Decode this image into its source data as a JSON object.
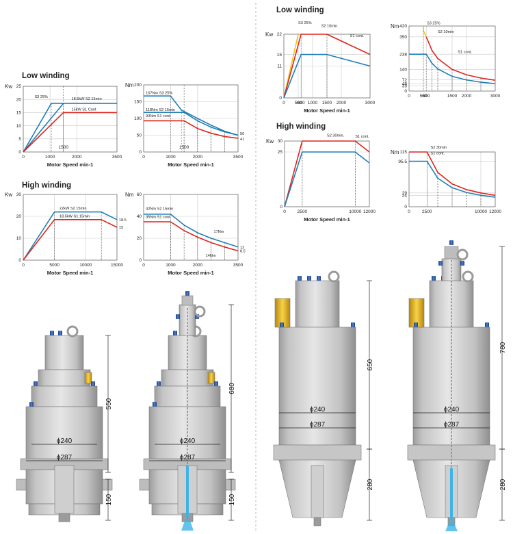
{
  "colors": {
    "red": "#e0241b",
    "blue": "#1f7fb6",
    "yellow": "#f2c21a",
    "grid": "#c9c9c9",
    "body": "#d3d3d3",
    "shade": "#a8a8a8",
    "coolant": "#3db4e6"
  },
  "sections": [
    {
      "id": "left",
      "low_title": "Low winding",
      "high_title": "High winding",
      "machines": [
        {
          "id": "m1",
          "label_total": "550",
          "label_nose": "150",
          "label_d1": "ϕ240",
          "label_d2": "ϕ287"
        },
        {
          "id": "m2",
          "label_total": "680",
          "label_nose": "150",
          "label_d1": "ϕ240",
          "label_d2": "ϕ287"
        }
      ]
    },
    {
      "id": "right",
      "low_title": "Low winding",
      "high_title": "High winding",
      "machines": [
        {
          "id": "m3",
          "label_total": "650",
          "label_nose": "280",
          "label_d1": "ϕ240",
          "label_d2": "ϕ287"
        },
        {
          "id": "m4",
          "label_total": "780",
          "label_nose": "280",
          "label_d1": "ϕ240",
          "label_d2": "ϕ287"
        }
      ]
    }
  ],
  "chart_data": [
    {
      "id": "c1",
      "type": "line",
      "ylabel": "Kw",
      "xlabel": "Motor Speed min-1",
      "xlim": [
        0,
        3500
      ],
      "ylim": [
        0,
        25
      ],
      "xticks": [
        "0",
        "1000",
        "2000",
        "3500"
      ],
      "xtick_vals": [
        0,
        1000,
        2000,
        3500
      ],
      "yticks": [
        "0",
        "5",
        "10",
        "15",
        "20",
        "25"
      ],
      "ytick_vals": [
        0,
        5,
        10,
        15,
        20,
        25
      ],
      "extra_xticks": [
        {
          "v": 1500,
          "t": "1500"
        }
      ],
      "series": [
        {
          "name": "S3 25%",
          "color": "blue",
          "x": [
            0,
            1050,
            1500
          ],
          "y": [
            0,
            18.5,
            18.5
          ]
        },
        {
          "name": "18.5kW S2 15min",
          "color": "blue",
          "x": [
            0,
            1500,
            3500
          ],
          "y": [
            0,
            18.5,
            18.5
          ]
        },
        {
          "name": "15kW S1 Cont",
          "color": "red",
          "x": [
            0,
            1500,
            3500
          ],
          "y": [
            0,
            15,
            15
          ]
        }
      ],
      "annotations": [
        {
          "t": "S3 25%",
          "x": 420,
          "y": 20.6
        },
        {
          "t": "18.5kW S2 15min",
          "x": 1800,
          "y": 19.8
        },
        {
          "t": "15kW S1 Cont",
          "x": 1800,
          "y": 15.7
        }
      ]
    },
    {
      "id": "c2",
      "type": "line",
      "ylabel": "Nm",
      "xlabel": "Motor Speed min-1",
      "xlim": [
        0,
        3500
      ],
      "ylim": [
        0,
        200
      ],
      "xticks": [
        "0",
        "1000",
        "2000",
        "3500"
      ],
      "xtick_vals": [
        0,
        1000,
        2000,
        3500
      ],
      "yticks": [
        "0",
        "50",
        "100",
        "150",
        "200"
      ],
      "ytick_vals": [
        0,
        50,
        100,
        150,
        200
      ],
      "extra_xticks": [
        {
          "v": 1500,
          "t": "1500"
        }
      ],
      "series": [
        {
          "name": "167Nm S3 25%",
          "color": "blue",
          "x": [
            0,
            1000,
            1400,
            2000,
            2500,
            3000,
            3500
          ],
          "y": [
            167,
            167,
            125,
            100,
            80,
            62,
            50
          ]
        },
        {
          "name": "118Nm S2 15min",
          "color": "blue",
          "x": [
            0,
            1500,
            2000,
            2500,
            3000,
            3500
          ],
          "y": [
            118,
            118,
            93,
            74,
            60,
            50
          ]
        },
        {
          "name": "93Nm S1 cont",
          "color": "red",
          "x": [
            0,
            1500,
            2000,
            2500,
            3000,
            3500
          ],
          "y": [
            93,
            93,
            70,
            56,
            46,
            41
          ]
        }
      ],
      "annotations": [
        {
          "t": "167Nm S3 25%",
          "x": 80,
          "y": 172
        },
        {
          "t": "118Nm S2 15min",
          "x": 80,
          "y": 122
        },
        {
          "t": "93Nm S1 cont",
          "x": 80,
          "y": 104
        }
      ],
      "end_labels": [
        {
          "t": "50",
          "y": 55
        },
        {
          "t": "41",
          "y": 39
        }
      ]
    },
    {
      "id": "c3",
      "type": "line",
      "ylabel": "Kw",
      "xlabel": "Motor Speed min-1",
      "xlim": [
        0,
        15000
      ],
      "ylim": [
        0,
        30
      ],
      "xticks": [
        "0",
        "5000",
        "10000",
        "15000"
      ],
      "xtick_vals": [
        0,
        5000,
        10000,
        15000
      ],
      "yticks": [
        "0",
        "10",
        "20",
        "30"
      ],
      "ytick_vals": [
        0,
        10,
        20,
        30
      ],
      "extra_xticks": [],
      "series": [
        {
          "name": "22kW S2 15min",
          "color": "blue",
          "x": [
            0,
            5000,
            12500,
            15000
          ],
          "y": [
            0,
            22,
            22,
            18.5
          ]
        },
        {
          "name": "18.5kW S1 15min",
          "color": "red",
          "x": [
            0,
            5000,
            12500,
            15000
          ],
          "y": [
            0,
            18.5,
            18.5,
            15
          ]
        }
      ],
      "annotations": [
        {
          "t": "22kW S2 15min",
          "x": 5800,
          "y": 23.2
        },
        {
          "t": "18.5kW S1 15min",
          "x": 5800,
          "y": 19.6
        }
      ],
      "end_labels": [
        {
          "t": "18.5",
          "y": 18.5
        },
        {
          "t": "15",
          "y": 15
        }
      ]
    },
    {
      "id": "c4",
      "type": "line",
      "ylabel": "Nm",
      "xlabel": "Motor Speed min-1",
      "xlim": [
        0,
        3500
      ],
      "ylim": [
        0,
        60
      ],
      "xticks": [
        "0",
        "1000",
        "2000",
        "3500"
      ],
      "xtick_vals": [
        0,
        1000,
        2000,
        3500
      ],
      "yticks": [
        "0",
        "20",
        "40",
        "60"
      ],
      "ytick_vals": [
        0,
        20,
        40,
        60
      ],
      "extra_xticks": [],
      "series": [
        {
          "name": "42Nm S2 15min",
          "color": "blue",
          "x": [
            0,
            1000,
            1500,
            2000,
            2500,
            3000,
            3500
          ],
          "y": [
            42,
            42,
            32,
            25,
            20,
            16,
            12
          ]
        },
        {
          "name": "35Nm S1 cont",
          "color": "red",
          "x": [
            0,
            1000,
            1500,
            2000,
            2500,
            3000,
            3500
          ],
          "y": [
            35,
            35,
            27,
            21,
            16,
            12,
            8.5
          ]
        }
      ],
      "annotations": [
        {
          "t": "42Nm S2 15min",
          "x": 80,
          "y": 46
        },
        {
          "t": "35Nm S1 cont",
          "x": 80,
          "y": 38.5
        },
        {
          "t": "17Nm",
          "x": 2600,
          "y": 25
        },
        {
          "t": "14Nm",
          "x": 2300,
          "y": 3
        }
      ],
      "end_labels": [
        {
          "t": "12",
          "y": 12
        },
        {
          "t": "8.5",
          "y": 8.5
        }
      ]
    },
    {
      "id": "c5",
      "type": "line",
      "ylabel": "Kw",
      "xlabel": "Motor Speed min-1",
      "xlim": [
        0,
        3000
      ],
      "ylim": [
        0,
        22
      ],
      "xticks": [
        "0",
        "500",
        "600",
        "1000",
        "1500",
        "2000",
        "3000"
      ],
      "xtick_vals": [
        0,
        500,
        600,
        1000,
        1500,
        2000,
        3000
      ],
      "yticks": [
        "0",
        "11",
        "15",
        "22"
      ],
      "ytick_vals": [
        0,
        11,
        15,
        22
      ],
      "extra_xticks": [],
      "series": [
        {
          "name": "S3 25%",
          "color": "yellow",
          "x": [
            0,
            500
          ],
          "y": [
            0,
            22
          ]
        },
        {
          "name": "S2 10min.",
          "color": "red",
          "x": [
            0,
            600,
            1500,
            3000
          ],
          "y": [
            0,
            22,
            22,
            15
          ]
        },
        {
          "name": "S1 cont.",
          "color": "blue",
          "x": [
            0,
            600,
            1500,
            3000
          ],
          "y": [
            0,
            15,
            15,
            11
          ]
        }
      ],
      "annotations": [
        {
          "t": "S3 25%",
          "x": 500,
          "y": 25.5
        },
        {
          "t": "S2 10min.",
          "x": 1300,
          "y": 24.5
        },
        {
          "t": "S1 cont.",
          "x": 2300,
          "y": 21
        }
      ]
    },
    {
      "id": "c6",
      "type": "line",
      "ylabel": "Nm",
      "xlabel": "",
      "xlim": [
        0,
        3000
      ],
      "ylim": [
        0,
        420
      ],
      "xticks": [
        "0",
        "500",
        "600",
        "1500",
        "2000",
        "3000"
      ],
      "xtick_vals": [
        0,
        500,
        600,
        1500,
        2000,
        3000
      ],
      "yticks": [
        "0",
        "33",
        "48",
        "72",
        "140",
        "238",
        "350",
        "420"
      ],
      "ytick_vals": [
        0,
        33,
        48,
        72,
        140,
        238,
        350,
        420
      ],
      "extra_xticks": [],
      "series": [
        {
          "name": "S3 25%",
          "color": "yellow",
          "x": [
            500,
            500,
            600
          ],
          "y": [
            420,
            390,
            350
          ]
        },
        {
          "name": "S2 10min",
          "color": "red",
          "x": [
            600,
            800,
            1000,
            1500,
            2000,
            2500,
            3000
          ],
          "y": [
            350,
            262,
            210,
            140,
            105,
            84,
            70
          ]
        },
        {
          "name": "S1 cont.",
          "color": "blue",
          "x": [
            0,
            600,
            800,
            1000,
            1500,
            2000,
            2500,
            3000
          ],
          "y": [
            238,
            238,
            179,
            143,
            95,
            72,
            57,
            48
          ]
        }
      ],
      "annotations": [
        {
          "t": "S3 25%",
          "x": 620,
          "y": 430
        },
        {
          "t": "S2 10min",
          "x": 1000,
          "y": 375
        },
        {
          "t": "S1 cont.",
          "x": 1700,
          "y": 245
        }
      ]
    },
    {
      "id": "c7",
      "type": "line",
      "ylabel": "Kw",
      "xlabel": "Motor Speed min-1",
      "xlim": [
        0,
        12000
      ],
      "ylim": [
        0,
        30
      ],
      "xticks": [
        "0",
        "2500",
        "10000",
        "12000"
      ],
      "xtick_vals": [
        0,
        2500,
        10000,
        12000
      ],
      "yticks": [
        "0",
        "25",
        "30"
      ],
      "ytick_vals": [
        0,
        25,
        30
      ],
      "extra_xticks": [],
      "series": [
        {
          "name": "S2 30min.",
          "color": "red",
          "x": [
            0,
            2500,
            10000,
            12000
          ],
          "y": [
            0,
            30,
            30,
            25
          ]
        },
        {
          "name": "S1 cont.",
          "color": "blue",
          "x": [
            0,
            2500,
            10000,
            12000
          ],
          "y": [
            0,
            25,
            25,
            20
          ]
        }
      ],
      "annotations": [
        {
          "t": "S2 30min.",
          "x": 6000,
          "y": 32
        },
        {
          "t": "S1 cont.",
          "x": 10000,
          "y": 31.5
        }
      ]
    },
    {
      "id": "c8",
      "type": "line",
      "ylabel": "Nm",
      "xlabel": "",
      "xlim": [
        0,
        12000
      ],
      "ylim": [
        0,
        115
      ],
      "xticks": [
        "0",
        "2500",
        "10000",
        "12000"
      ],
      "xtick_vals": [
        0,
        2500,
        10000,
        12000
      ],
      "yticks": [
        "0",
        "24",
        "29",
        "95.5",
        "115"
      ],
      "ytick_vals": [
        0,
        24,
        29,
        95.5,
        115
      ],
      "extra_xticks": [],
      "series": [
        {
          "name": "S2 30min",
          "color": "red",
          "x": [
            0,
            2500,
            4000,
            6000,
            8000,
            10000,
            12000
          ],
          "y": [
            115,
            115,
            72,
            48,
            36,
            29,
            24
          ]
        },
        {
          "name": "S1 cont.",
          "color": "blue",
          "x": [
            0,
            2500,
            4000,
            6000,
            8000,
            10000,
            12000
          ],
          "y": [
            95.5,
            95.5,
            60,
            40,
            30,
            24,
            20
          ]
        }
      ],
      "annotations": [
        {
          "t": "S2 30min",
          "x": 3000,
          "y": 122
        },
        {
          "t": "S1 cont.",
          "x": 3000,
          "y": 110
        }
      ]
    }
  ]
}
